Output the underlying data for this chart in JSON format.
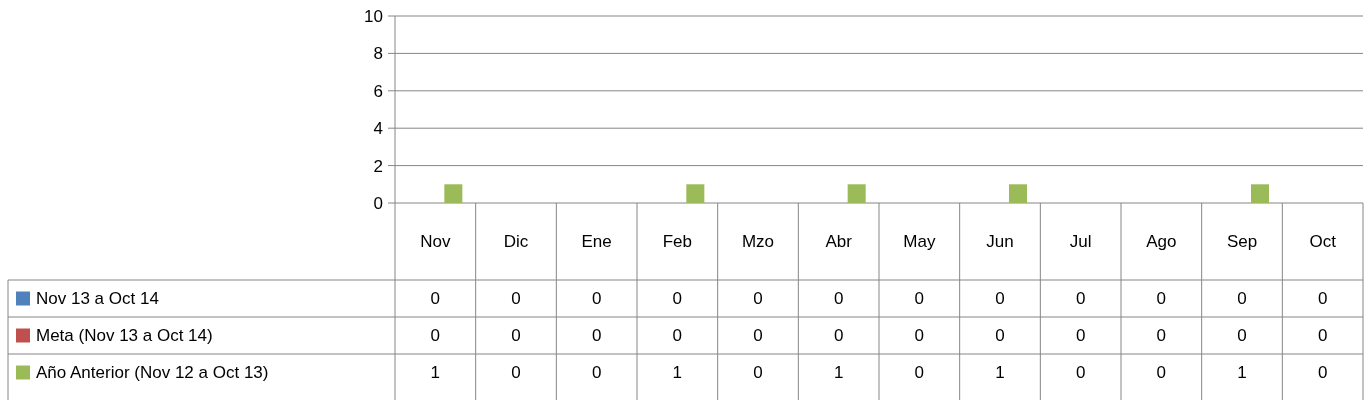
{
  "chart_data": {
    "type": "bar",
    "categories": [
      "Nov",
      "Dic",
      "Ene",
      "Feb",
      "Mzo",
      "Abr",
      "May",
      "Jun",
      "Jul",
      "Ago",
      "Sep",
      "Oct"
    ],
    "series": [
      {
        "name": "Nov 13 a Oct 14",
        "color": "#4f81bd",
        "values": [
          0,
          0,
          0,
          0,
          0,
          0,
          0,
          0,
          0,
          0,
          0,
          0
        ]
      },
      {
        "name": "Meta (Nov 13 a Oct 14)",
        "color": "#c0504d",
        "values": [
          0,
          0,
          0,
          0,
          0,
          0,
          0,
          0,
          0,
          0,
          0,
          0
        ]
      },
      {
        "name": "Año Anterior (Nov 12 a Oct 13)",
        "color": "#9bbb59",
        "values": [
          1,
          0,
          0,
          1,
          0,
          1,
          0,
          1,
          0,
          0,
          1,
          0
        ]
      }
    ],
    "ylim": [
      0,
      10
    ],
    "yticks": [
      0,
      2,
      4,
      6,
      8,
      10
    ],
    "grid": "y",
    "legend": "bottom",
    "data_labels": true
  }
}
